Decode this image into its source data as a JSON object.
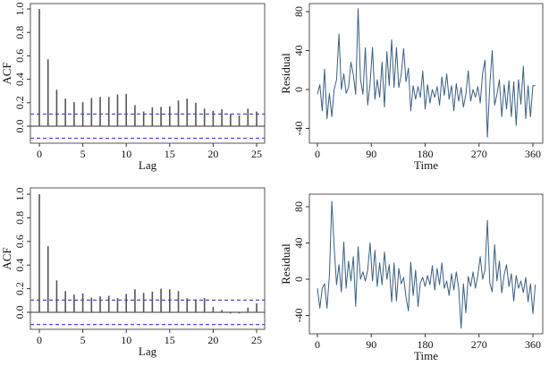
{
  "colors": {
    "acf_bar": "#555555",
    "ci_line": "#4a4ae8",
    "residual_line": "#3b5f82"
  },
  "chart_data": [
    {
      "type": "bar",
      "panel": "top-left",
      "xlabel": "Lag",
      "ylabel": "ACF",
      "lags": [
        0,
        1,
        2,
        3,
        4,
        5,
        6,
        7,
        8,
        9,
        10,
        11,
        12,
        13,
        14,
        15,
        16,
        17,
        18,
        19,
        20,
        21,
        22,
        23,
        24,
        25
      ],
      "values": [
        1.0,
        0.57,
        0.31,
        0.235,
        0.205,
        0.205,
        0.24,
        0.25,
        0.25,
        0.27,
        0.275,
        0.18,
        0.125,
        0.16,
        0.165,
        0.17,
        0.22,
        0.235,
        0.2,
        0.15,
        0.13,
        0.145,
        0.105,
        0.09,
        0.15,
        0.125
      ],
      "confidence_bound": 0.103,
      "xlim": [
        -1,
        26
      ],
      "ylim": [
        -0.15,
        1.0
      ],
      "xticks": [
        "0",
        "5",
        "10",
        "15",
        "20",
        "25"
      ],
      "yticks": [
        "0.0",
        "0.2",
        "0.4",
        "0.6",
        "0.8",
        "1.0"
      ]
    },
    {
      "type": "line",
      "panel": "top-right",
      "xlabel": "Time",
      "ylabel": "Residual",
      "x_step": 4,
      "values": [
        -5,
        5,
        -22,
        21,
        -30,
        -4,
        -28,
        0,
        10,
        57,
        0,
        16,
        -4,
        2,
        28,
        15,
        -5,
        83,
        10,
        -5,
        43,
        -16,
        6,
        43,
        -10,
        10,
        -8,
        28,
        -18,
        39,
        4,
        51,
        2,
        43,
        2,
        15,
        42,
        8,
        22,
        -22,
        4,
        -10,
        3,
        -8,
        19,
        -20,
        5,
        -14,
        0,
        -8,
        3,
        -16,
        13,
        -6,
        16,
        -10,
        4,
        -22,
        6,
        -12,
        2,
        -18,
        -5,
        19,
        -12,
        0,
        -8,
        3,
        -14,
        17,
        30,
        -49,
        5,
        40,
        -16,
        -5,
        10,
        -28,
        5,
        -20,
        9,
        -28,
        8,
        -37,
        10,
        -15,
        24,
        -30,
        4,
        -28,
        4,
        4
      ],
      "xlim": [
        -10,
        370
      ],
      "ylim": [
        -52,
        88
      ],
      "xticks": [
        "0",
        "90",
        "180",
        "270",
        "360"
      ],
      "yticks": [
        "-40",
        "0",
        "40",
        "80"
      ]
    },
    {
      "type": "bar",
      "panel": "bottom-left",
      "xlabel": "Lag",
      "ylabel": "ACF",
      "lags": [
        0,
        1,
        2,
        3,
        4,
        5,
        6,
        7,
        8,
        9,
        10,
        11,
        12,
        13,
        14,
        15,
        16,
        17,
        18,
        19,
        20,
        21,
        22,
        23,
        24,
        25
      ],
      "values": [
        1.0,
        0.56,
        0.27,
        0.18,
        0.15,
        0.16,
        0.125,
        0.135,
        0.14,
        0.12,
        0.155,
        0.195,
        0.165,
        0.175,
        0.2,
        0.195,
        0.18,
        0.12,
        0.11,
        0.12,
        0.045,
        0.02,
        -0.01,
        -0.01,
        0.04,
        0.075
      ],
      "confidence_bound": 0.103,
      "xlim": [
        -1,
        26
      ],
      "ylim": [
        -0.15,
        1.0
      ],
      "xticks": [
        "0",
        "5",
        "10",
        "15",
        "20",
        "25"
      ],
      "yticks": [
        "0.0",
        "0.2",
        "0.4",
        "0.6",
        "0.8",
        "1.0"
      ]
    },
    {
      "type": "line",
      "panel": "bottom-right",
      "xlabel": "Time",
      "ylabel": "Residual",
      "x_step": 4,
      "values": [
        -10,
        -32,
        -10,
        -5,
        -32,
        4,
        86,
        36,
        -6,
        16,
        -14,
        41,
        -10,
        20,
        -2,
        25,
        -30,
        36,
        0,
        8,
        -2,
        10,
        40,
        -2,
        32,
        -8,
        18,
        -6,
        30,
        0,
        16,
        -25,
        18,
        -24,
        12,
        -5,
        2,
        -20,
        -35,
        19,
        -18,
        10,
        -30,
        -4,
        2,
        -8,
        4,
        -6,
        15,
        -12,
        12,
        -6,
        18,
        -10,
        -2,
        -18,
        6,
        -12,
        8,
        -10,
        -54,
        -5,
        -37,
        3,
        -8,
        8,
        -10,
        4,
        25,
        0,
        10,
        65,
        -4,
        -14,
        38,
        -2,
        20,
        -15,
        5,
        16,
        -8,
        6,
        -24,
        4,
        -10,
        -2,
        -15,
        2,
        -25,
        -5,
        -38,
        -6
      ],
      "xlim": [
        -10,
        370
      ],
      "ylim": [
        -60,
        92
      ],
      "xticks": [
        "0",
        "90",
        "180",
        "270",
        "360"
      ],
      "yticks": [
        "-40",
        "0",
        "40",
        "80"
      ]
    }
  ]
}
